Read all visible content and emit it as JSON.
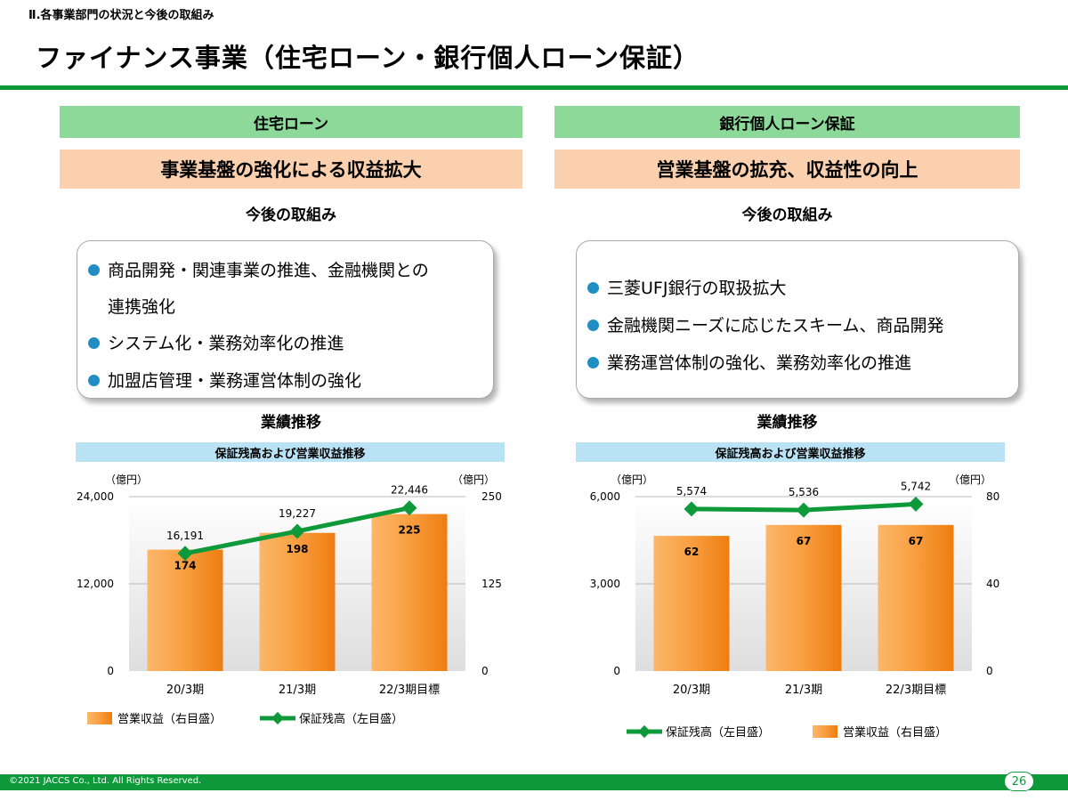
{
  "header": {
    "section_label": "Ⅱ.各事業部門の状況と今後の取組み",
    "title": "ファイナンス事業（住宅ローン・銀行個人ローン保証）"
  },
  "left": {
    "category": "住宅ローン",
    "theme": "事業基盤の強化による収益拡大",
    "future_heading": "今後の取組み",
    "bullets": [
      {
        "text": "商品開発・関連事業の推進、金融機関との",
        "cont": "連携強化"
      },
      {
        "text": "システム化・業務効率化の推進"
      },
      {
        "text": "加盟店管理・業務運営体制の強化"
      }
    ],
    "results_heading": "業績推移",
    "chart_band": "保証残高および営業収益推移"
  },
  "right": {
    "category": "銀行個人ローン保証",
    "theme": "営業基盤の拡充、収益性の向上",
    "future_heading": "今後の取組み",
    "bullets": [
      {
        "text": "三菱UFJ銀行の取扱拡大"
      },
      {
        "text": "金融機関ニーズに応じたスキーム、商品開発"
      },
      {
        "text": "業務運営体制の強化、業務効率化の推進"
      }
    ],
    "results_heading": "業績推移",
    "chart_band": "保証残高および営業収益推移"
  },
  "footer": {
    "copyright": "©2021 JACCS Co., Ltd. All Rights Reserved.",
    "page": "26"
  },
  "colors": {
    "green": "#0e9a3a",
    "bar_orange": "#f7941d",
    "line_green": "#0e9a3a",
    "bullet_blue": "#1f8ec4"
  },
  "chart_data": [
    {
      "type": "bar",
      "title": "保証残高および営業収益推移",
      "categories": [
        "20/3期",
        "21/3期",
        "22/3期目標"
      ],
      "left_unit": "（億円）",
      "right_unit": "（億円）",
      "left_ticks": [
        "24,000",
        "12,000",
        "0"
      ],
      "right_ticks": [
        "250",
        "125",
        "0"
      ],
      "left_range": [
        0,
        24000
      ],
      "right_range": [
        0,
        250
      ],
      "series": [
        {
          "name": "営業収益（右目盛）",
          "kind": "bar",
          "axis": "right",
          "values": [
            174,
            198,
            225
          ],
          "labels": [
            "174",
            "198",
            "225"
          ]
        },
        {
          "name": "保証残高（左目盛）",
          "kind": "line",
          "axis": "left",
          "values": [
            16191,
            19227,
            22446
          ],
          "labels": [
            "16,191",
            "19,227",
            "22,446"
          ]
        }
      ],
      "legend_order": [
        0,
        1
      ]
    },
    {
      "type": "bar",
      "title": "保証残高および営業収益推移",
      "categories": [
        "20/3期",
        "21/3期",
        "22/3期目標"
      ],
      "left_unit": "（億円）",
      "right_unit": "（億円）",
      "left_ticks": [
        "6,000",
        "3,000",
        "0"
      ],
      "right_ticks": [
        "80",
        "40",
        "0"
      ],
      "left_range": [
        0,
        6000
      ],
      "right_range": [
        0,
        80
      ],
      "series": [
        {
          "name": "営業収益（右目盛）",
          "kind": "bar",
          "axis": "right",
          "values": [
            62,
            67,
            67
          ],
          "labels": [
            "62",
            "67",
            "67"
          ]
        },
        {
          "name": "保証残高（左目盛）",
          "kind": "line",
          "axis": "left",
          "values": [
            5574,
            5536,
            5742
          ],
          "labels": [
            "5,574",
            "5,536",
            "5,742"
          ]
        }
      ],
      "legend_order": [
        1,
        0
      ]
    }
  ]
}
